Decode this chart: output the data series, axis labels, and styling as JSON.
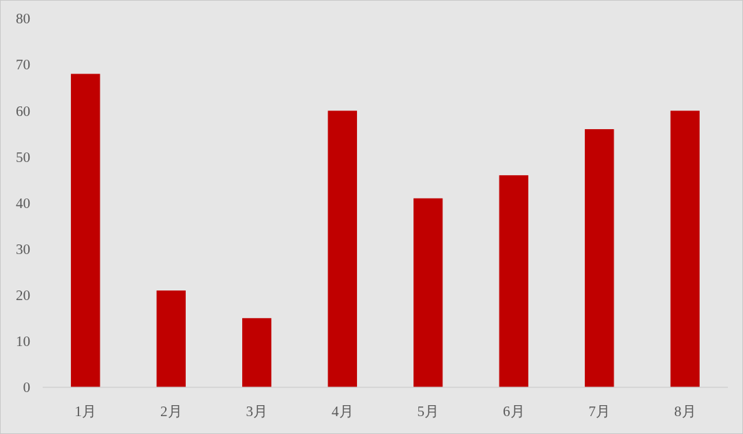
{
  "chart_data": {
    "type": "bar",
    "categories": [
      "1月",
      "2月",
      "3月",
      "4月",
      "5月",
      "6月",
      "7月",
      "8月"
    ],
    "values": [
      68,
      21,
      15,
      60,
      41,
      46,
      56,
      60
    ],
    "color": "#c00000",
    "ylim": [
      0,
      80
    ],
    "yticks": [
      0,
      10,
      20,
      30,
      40,
      50,
      60,
      70,
      80
    ],
    "grid": false,
    "legend": false
  }
}
